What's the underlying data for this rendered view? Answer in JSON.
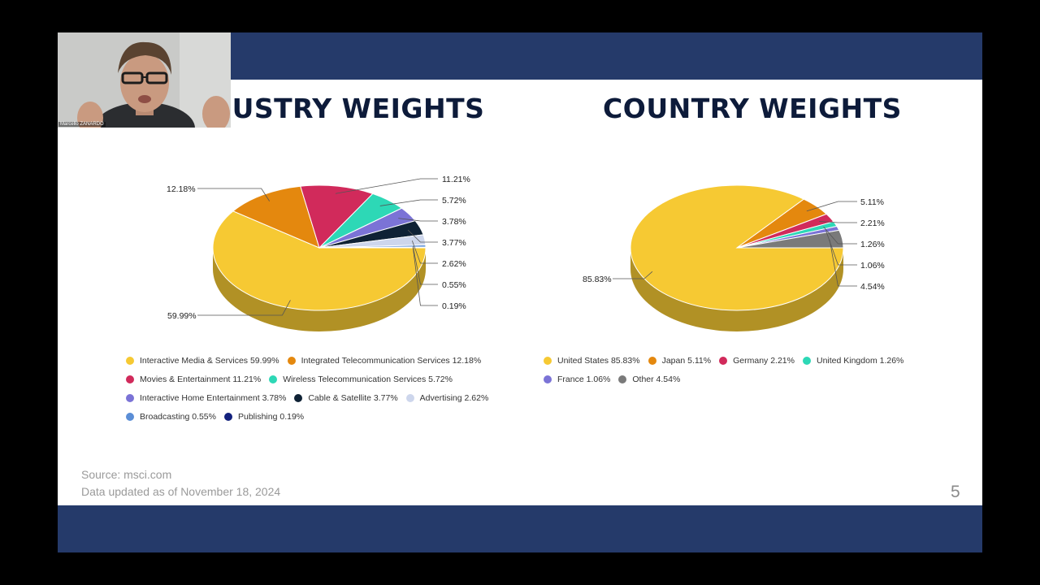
{
  "slide": {
    "page_number": "5",
    "source": "Source: msci.com",
    "updated": "Data updated as of November 18, 2024"
  },
  "webcam": {
    "participant_name": "Marcello ZANARDO"
  },
  "chart_data": [
    {
      "type": "pie",
      "title": "USTRY WEIGHTS",
      "slices": [
        {
          "label": "Interactive Media & Services",
          "value": 59.99,
          "value_label": "59.99%",
          "color": "#f6c933"
        },
        {
          "label": "Integrated Telecommunication Services",
          "value": 12.18,
          "value_label": "12.18%",
          "color": "#e4880e"
        },
        {
          "label": "Movies & Entertainment",
          "value": 11.21,
          "value_label": "11.21%",
          "color": "#d12a5b"
        },
        {
          "label": "Wireless Telecommunication Services",
          "value": 5.72,
          "value_label": "5.72%",
          "color": "#2dd8b6"
        },
        {
          "label": "Interactive Home Entertainment",
          "value": 3.78,
          "value_label": "3.78%",
          "color": "#7b73d6"
        },
        {
          "label": "Cable & Satellite",
          "value": 3.77,
          "value_label": "3.77%",
          "color": "#0f2235"
        },
        {
          "label": "Advertising",
          "value": 2.62,
          "value_label": "2.62%",
          "color": "#cdd6ec"
        },
        {
          "label": "Broadcasting",
          "value": 0.55,
          "value_label": "0.55%",
          "color": "#5b8ed6"
        },
        {
          "label": "Publishing",
          "value": 0.19,
          "value_label": "0.19%",
          "color": "#13217d"
        }
      ],
      "legend_rows": [
        [
          0,
          1
        ],
        [
          2,
          3
        ],
        [
          4,
          5,
          6
        ],
        [
          7,
          8
        ]
      ]
    },
    {
      "type": "pie",
      "title": "COUNTRY WEIGHTS",
      "slices": [
        {
          "label": "United States",
          "value": 85.83,
          "value_label": "85.83%",
          "color": "#f6c933"
        },
        {
          "label": "Japan",
          "value": 5.11,
          "value_label": "5.11%",
          "color": "#e4880e"
        },
        {
          "label": "Germany",
          "value": 2.21,
          "value_label": "2.21%",
          "color": "#d12a5b"
        },
        {
          "label": "United Kingdom",
          "value": 1.26,
          "value_label": "1.26%",
          "color": "#2dd8b6"
        },
        {
          "label": "France",
          "value": 1.06,
          "value_label": "1.06%",
          "color": "#7b73d6"
        },
        {
          "label": "Other",
          "value": 4.54,
          "value_label": "4.54%",
          "color": "#7a7a7a"
        }
      ],
      "legend_rows": [
        [
          0,
          1,
          2,
          3
        ],
        [
          4,
          5
        ]
      ]
    }
  ]
}
